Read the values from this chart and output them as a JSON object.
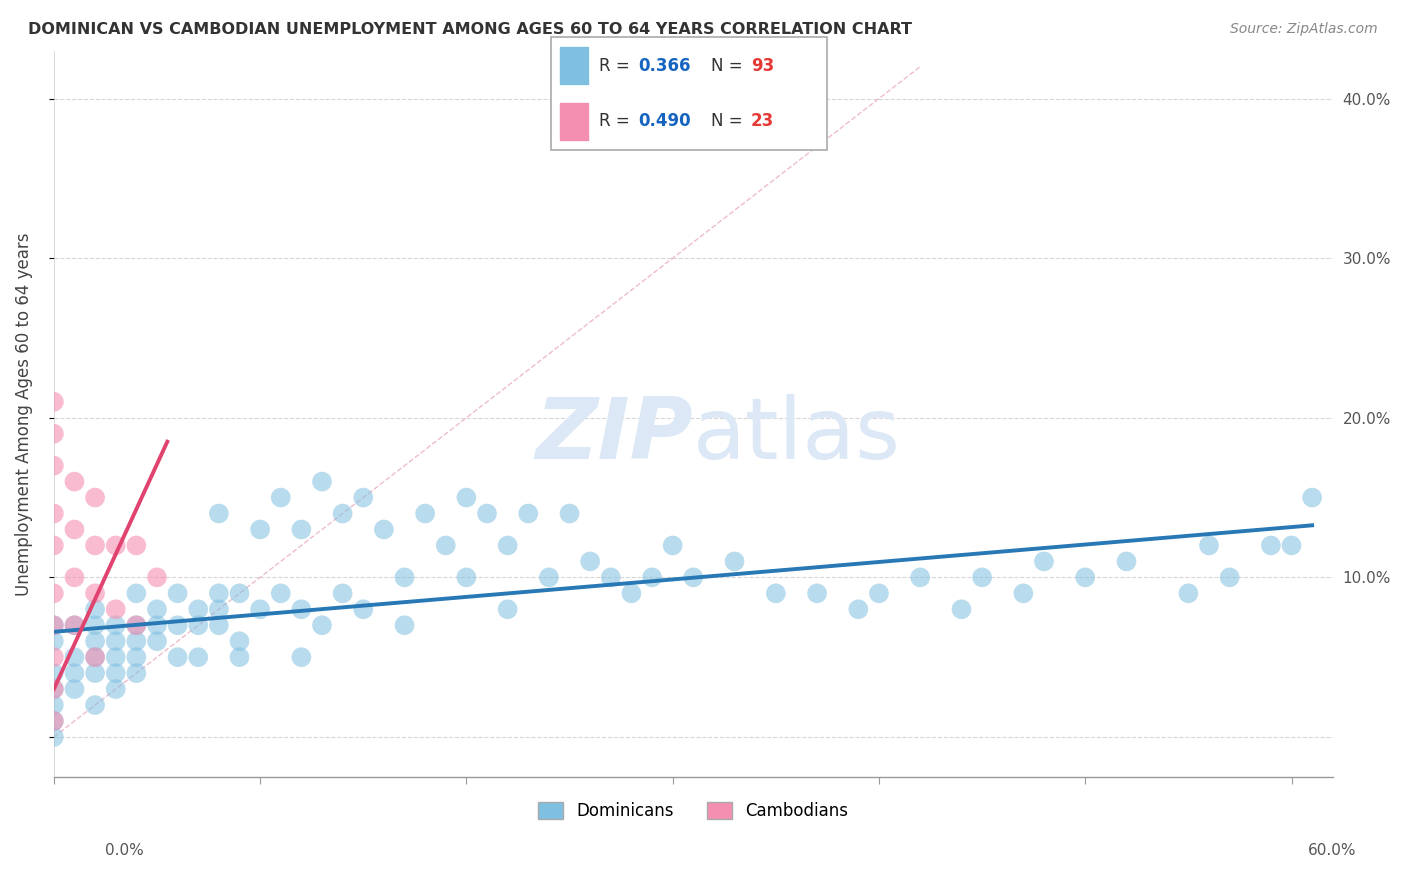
{
  "title": "DOMINICAN VS CAMBODIAN UNEMPLOYMENT AMONG AGES 60 TO 64 YEARS CORRELATION CHART",
  "source": "Source: ZipAtlas.com",
  "ylabel": "Unemployment Among Ages 60 to 64 years",
  "xlim": [
    0.0,
    0.62
  ],
  "ylim": [
    -0.025,
    0.43
  ],
  "xticks": [
    0.0,
    0.1,
    0.2,
    0.3,
    0.4,
    0.5,
    0.6
  ],
  "yticks": [
    0.0,
    0.1,
    0.2,
    0.3,
    0.4
  ],
  "right_yticklabels": [
    "",
    "10.0%",
    "20.0%",
    "30.0%",
    "40.0%"
  ],
  "dominican_color": "#7fbfdf",
  "cambodian_color": "#f48fb1",
  "dominican_line_color": "#2878b5",
  "cambodian_line_color": "#e0436e",
  "diag_color": "#e8a0b0",
  "dominican_R": 0.366,
  "dominican_N": 93,
  "cambodian_R": 0.49,
  "cambodian_N": 23,
  "legend_R_color": "#1565c0",
  "legend_N_color": "#e53935",
  "background_color": "#ffffff",
  "grid_color": "#cccccc",
  "watermark_color": "#dce8f5",
  "dominican_x": [
    0.0,
    0.0,
    0.0,
    0.0,
    0.0,
    0.0,
    0.0,
    0.01,
    0.01,
    0.01,
    0.01,
    0.02,
    0.02,
    0.02,
    0.02,
    0.02,
    0.02,
    0.03,
    0.03,
    0.03,
    0.03,
    0.03,
    0.04,
    0.04,
    0.04,
    0.04,
    0.04,
    0.05,
    0.05,
    0.05,
    0.06,
    0.06,
    0.06,
    0.07,
    0.07,
    0.07,
    0.08,
    0.08,
    0.08,
    0.08,
    0.09,
    0.09,
    0.09,
    0.1,
    0.1,
    0.11,
    0.11,
    0.12,
    0.12,
    0.12,
    0.13,
    0.13,
    0.14,
    0.14,
    0.15,
    0.15,
    0.16,
    0.17,
    0.17,
    0.18,
    0.19,
    0.2,
    0.2,
    0.21,
    0.22,
    0.22,
    0.23,
    0.24,
    0.25,
    0.26,
    0.27,
    0.28,
    0.29,
    0.3,
    0.31,
    0.33,
    0.35,
    0.37,
    0.39,
    0.4,
    0.42,
    0.44,
    0.45,
    0.47,
    0.48,
    0.5,
    0.52,
    0.55,
    0.56,
    0.57,
    0.59,
    0.6,
    0.61
  ],
  "dominican_y": [
    0.04,
    0.03,
    0.02,
    0.01,
    0.0,
    0.06,
    0.07,
    0.05,
    0.03,
    0.07,
    0.04,
    0.05,
    0.04,
    0.07,
    0.08,
    0.06,
    0.02,
    0.06,
    0.07,
    0.05,
    0.04,
    0.03,
    0.07,
    0.09,
    0.06,
    0.05,
    0.04,
    0.08,
    0.07,
    0.06,
    0.09,
    0.07,
    0.05,
    0.08,
    0.07,
    0.05,
    0.14,
    0.09,
    0.08,
    0.07,
    0.09,
    0.06,
    0.05,
    0.13,
    0.08,
    0.15,
    0.09,
    0.13,
    0.08,
    0.05,
    0.16,
    0.07,
    0.14,
    0.09,
    0.15,
    0.08,
    0.13,
    0.1,
    0.07,
    0.14,
    0.12,
    0.15,
    0.1,
    0.14,
    0.12,
    0.08,
    0.14,
    0.1,
    0.14,
    0.11,
    0.1,
    0.09,
    0.1,
    0.12,
    0.1,
    0.11,
    0.09,
    0.09,
    0.08,
    0.09,
    0.1,
    0.08,
    0.1,
    0.09,
    0.11,
    0.1,
    0.11,
    0.09,
    0.12,
    0.1,
    0.12,
    0.12,
    0.15
  ],
  "cambodian_x": [
    0.0,
    0.0,
    0.0,
    0.0,
    0.0,
    0.0,
    0.0,
    0.0,
    0.0,
    0.0,
    0.01,
    0.01,
    0.01,
    0.01,
    0.02,
    0.02,
    0.02,
    0.02,
    0.03,
    0.03,
    0.04,
    0.04,
    0.05
  ],
  "cambodian_y": [
    0.21,
    0.19,
    0.17,
    0.14,
    0.12,
    0.09,
    0.07,
    0.05,
    0.03,
    0.01,
    0.16,
    0.13,
    0.1,
    0.07,
    0.15,
    0.12,
    0.09,
    0.05,
    0.12,
    0.08,
    0.12,
    0.07,
    0.1
  ]
}
